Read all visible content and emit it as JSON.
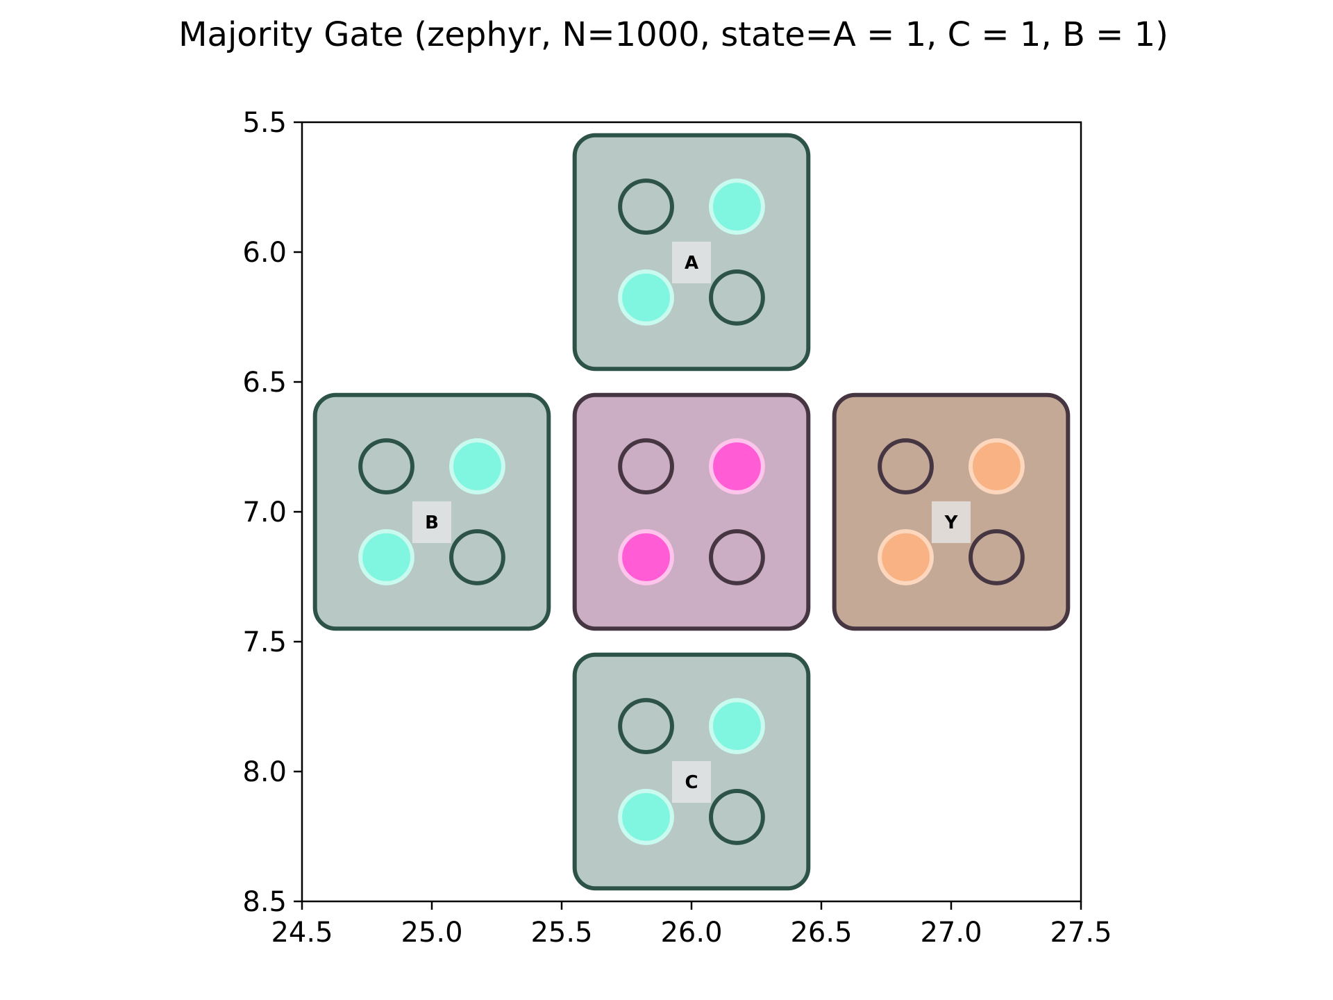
{
  "title": "Majority Gate (zephyr, N=1000, state=A = 1, C = 1, B = 1)",
  "axes": {
    "xlim": [
      24.5,
      27.5
    ],
    "ylim": [
      5.5,
      8.5
    ],
    "y_inverted": true,
    "x_ticks": [
      "24.5",
      "25.0",
      "25.5",
      "26.0",
      "26.5",
      "27.0",
      "27.5"
    ],
    "y_ticks": [
      "5.5",
      "6.0",
      "6.5",
      "7.0",
      "7.5",
      "8.0",
      "8.5"
    ]
  },
  "colors": {
    "input_cell_fill": "#b8c9c5",
    "input_cell_border": "#2d5248",
    "input_dot_on": "#80f5df",
    "input_dot_on_ring": "#c8faef",
    "center_cell_fill": "#cbadc4",
    "center_cell_border": "#453642",
    "center_dot_on": "#ff5cd6",
    "center_dot_on_ring": "#ffc4ec",
    "output_cell_fill": "#c5a997",
    "output_cell_border": "#453642",
    "output_dot_on": "#f8b283",
    "output_dot_on_ring": "#fdd7bd",
    "label_box": "#e6e6e6"
  },
  "chart_data": {
    "type": "scatter",
    "title": "Majority Gate (zephyr, N=1000, state=A = 1, C = 1, B = 1)",
    "xlabel": "",
    "ylabel": "",
    "xlim": [
      24.5,
      27.5
    ],
    "ylim": [
      8.5,
      5.5
    ],
    "cells": [
      {
        "id": "A",
        "label": "A",
        "role": "input",
        "cx": 26.0,
        "cy": 6.0,
        "active_dots": [
          "top-right",
          "bottom-left"
        ]
      },
      {
        "id": "B",
        "label": "B",
        "role": "input",
        "cx": 25.0,
        "cy": 7.0,
        "active_dots": [
          "top-right",
          "bottom-left"
        ]
      },
      {
        "id": "M",
        "label": "",
        "role": "center",
        "cx": 26.0,
        "cy": 7.0,
        "active_dots": [
          "top-right",
          "bottom-left"
        ]
      },
      {
        "id": "Y",
        "label": "Y",
        "role": "output",
        "cx": 27.0,
        "cy": 7.0,
        "active_dots": [
          "top-right",
          "bottom-left"
        ]
      },
      {
        "id": "C",
        "label": "C",
        "role": "input",
        "cx": 26.0,
        "cy": 8.0,
        "active_dots": [
          "top-right",
          "bottom-left"
        ]
      }
    ],
    "dot_offsets": {
      "top-left": [
        -0.175,
        -0.175
      ],
      "top-right": [
        0.175,
        -0.175
      ],
      "bottom-left": [
        -0.175,
        0.175
      ],
      "bottom-right": [
        0.175,
        0.175
      ]
    }
  }
}
